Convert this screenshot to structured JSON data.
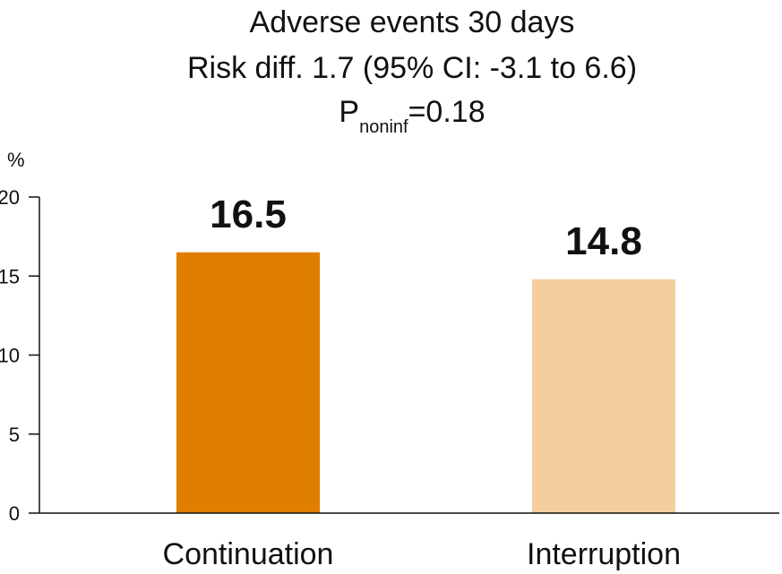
{
  "chart_data": {
    "type": "bar",
    "title_lines": [
      "Adverse events 30 days",
      "Risk diff. 1.7 (95% CI: -3.1 to 6.6)"
    ],
    "p_label": {
      "main": "P",
      "subscript": "noninf",
      "rest": "=0.18"
    },
    "ylabel": "%",
    "ylim": [
      0,
      20
    ],
    "yticks": [
      0,
      5,
      10,
      15,
      20
    ],
    "categories": [
      "Continuation",
      "Interruption"
    ],
    "values": [
      16.5,
      14.8
    ],
    "value_labels": [
      "16.5",
      "14.8"
    ],
    "colors": [
      "#E07E00",
      "#F4CDA0"
    ],
    "grid": false,
    "legend": "none"
  }
}
